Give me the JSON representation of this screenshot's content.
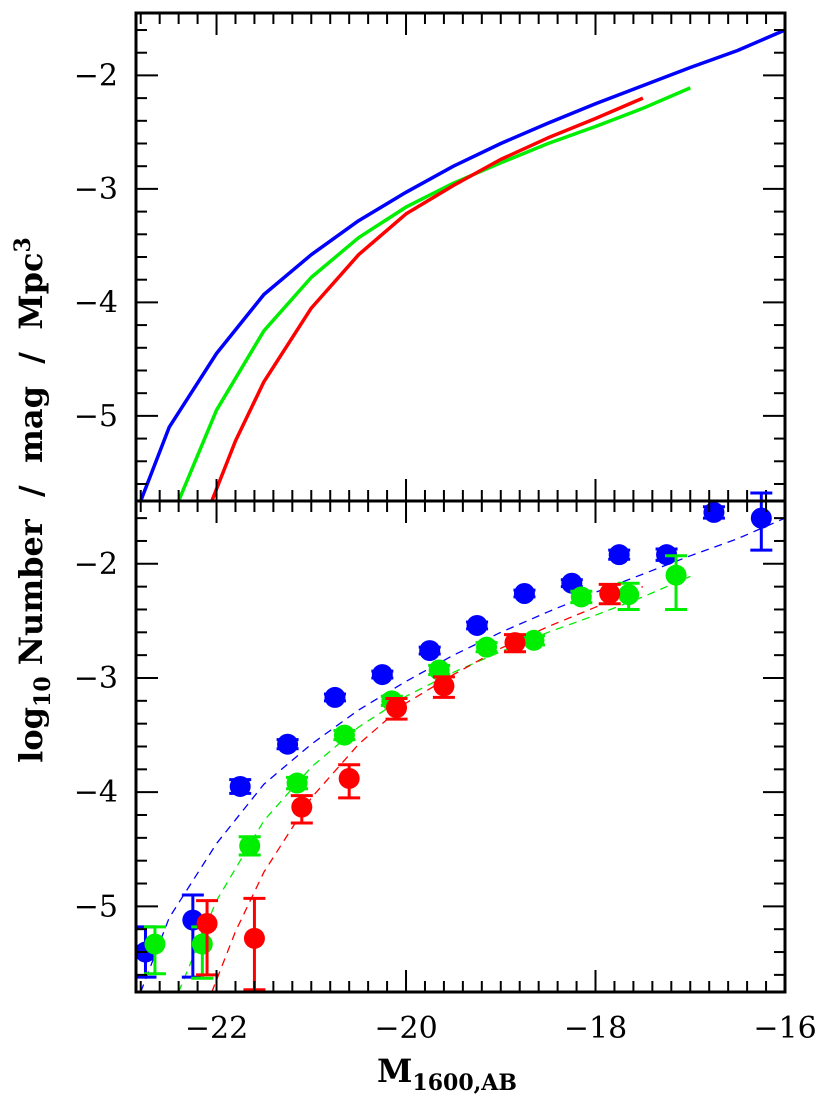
{
  "chart_data": [
    {
      "panel": "top",
      "type": "line",
      "xlim": [
        -22.85,
        -16.0
      ],
      "ylim": [
        -5.75,
        -1.45
      ],
      "xticks_major": [
        -22,
        -20,
        -18,
        -16
      ],
      "yticks": [
        -5,
        -4,
        -3,
        -2
      ],
      "ytick_labels": [
        "−5",
        "−4",
        "−3",
        "−2"
      ],
      "series": [
        {
          "color": "#0000ff",
          "x": [
            -22.8,
            -22.5,
            -22.0,
            -21.5,
            -21.0,
            -20.5,
            -20.0,
            -19.5,
            -19.0,
            -18.5,
            -18.0,
            -17.5,
            -17.0,
            -16.5,
            -16.0
          ],
          "y": [
            -5.75,
            -5.1,
            -4.45,
            -3.93,
            -3.58,
            -3.28,
            -3.03,
            -2.8,
            -2.6,
            -2.42,
            -2.25,
            -2.09,
            -1.93,
            -1.78,
            -1.6
          ]
        },
        {
          "color": "#00ee00",
          "x": [
            -22.4,
            -22.0,
            -21.5,
            -21.0,
            -20.5,
            -20.0,
            -19.5,
            -19.0,
            -18.5,
            -18.0,
            -17.5,
            -17.0
          ],
          "y": [
            -5.75,
            -4.95,
            -4.25,
            -3.78,
            -3.43,
            -3.16,
            -2.95,
            -2.77,
            -2.6,
            -2.45,
            -2.29,
            -2.11
          ]
        },
        {
          "color": "#ff0000",
          "x": [
            -22.05,
            -21.8,
            -21.5,
            -21.0,
            -20.5,
            -20.0,
            -19.5,
            -19.0,
            -18.5,
            -18.0,
            -17.5
          ],
          "y": [
            -5.75,
            -5.22,
            -4.7,
            -4.05,
            -3.58,
            -3.22,
            -2.97,
            -2.74,
            -2.55,
            -2.38,
            -2.2
          ]
        }
      ]
    },
    {
      "panel": "bottom",
      "type": "scatter",
      "xlim": [
        -22.85,
        -16.0
      ],
      "ylim": [
        -5.75,
        -1.45
      ],
      "xticks_major": [
        -22,
        -20,
        -18,
        -16
      ],
      "xtick_labels": [
        "−22",
        "−20",
        "−18",
        "−16"
      ],
      "yticks": [
        -5,
        -4,
        -3,
        -2
      ],
      "ytick_labels": [
        "−5",
        "−4",
        "−3",
        "−2"
      ],
      "xlabel": "M",
      "xlabel_sub": "1600,AB",
      "ylabel_pre": "log",
      "ylabel_sub": "10",
      "ylabel_post": " Number  /  mag  /  Mpc",
      "ylabel_sup": "3",
      "series": [
        {
          "color": "#0000ff",
          "fit": {
            "x": [
              -22.8,
              -22.5,
              -22.0,
              -21.5,
              -21.0,
              -20.5,
              -20.0,
              -19.5,
              -19.0,
              -18.5,
              -18.0,
              -17.5,
              -17.0,
              -16.5,
              -16.0
            ],
            "y": [
              -5.75,
              -5.1,
              -4.45,
              -3.93,
              -3.58,
              -3.28,
              -3.03,
              -2.8,
              -2.6,
              -2.42,
              -2.25,
              -2.09,
              -1.93,
              -1.78,
              -1.6
            ]
          },
          "points": [
            {
              "x": -22.75,
              "y": -5.4,
              "err_lo": 0.22,
              "err_hi": 0.22
            },
            {
              "x": -22.25,
              "y": -5.12,
              "err_lo": 0.5,
              "err_hi": 0.22
            },
            {
              "x": -21.75,
              "y": -3.95,
              "err_lo": 0.06,
              "err_hi": 0.06
            },
            {
              "x": -21.25,
              "y": -3.58,
              "err_lo": 0.04,
              "err_hi": 0.04
            },
            {
              "x": -20.75,
              "y": -3.17,
              "err_lo": 0.03,
              "err_hi": 0.03
            },
            {
              "x": -20.25,
              "y": -2.97,
              "err_lo": 0.03,
              "err_hi": 0.03
            },
            {
              "x": -19.75,
              "y": -2.76,
              "err_lo": 0.03,
              "err_hi": 0.03
            },
            {
              "x": -19.25,
              "y": -2.54,
              "err_lo": 0.03,
              "err_hi": 0.03
            },
            {
              "x": -18.75,
              "y": -2.26,
              "err_lo": 0.03,
              "err_hi": 0.03
            },
            {
              "x": -18.25,
              "y": -2.17,
              "err_lo": 0.03,
              "err_hi": 0.03
            },
            {
              "x": -17.75,
              "y": -1.92,
              "err_lo": 0.04,
              "err_hi": 0.04
            },
            {
              "x": -17.25,
              "y": -1.92,
              "err_lo": 0.05,
              "err_hi": 0.05
            },
            {
              "x": -16.75,
              "y": -1.55,
              "err_lo": 0.05,
              "err_hi": 0.05
            },
            {
              "x": -16.25,
              "y": -1.6,
              "err_lo": 0.28,
              "err_hi": 0.22
            }
          ]
        },
        {
          "color": "#00ee00",
          "fit": {
            "x": [
              -22.4,
              -22.0,
              -21.5,
              -21.0,
              -20.5,
              -20.0,
              -19.5,
              -19.0,
              -18.5,
              -18.0,
              -17.5,
              -17.0
            ],
            "y": [
              -5.75,
              -4.95,
              -4.25,
              -3.78,
              -3.43,
              -3.16,
              -2.95,
              -2.77,
              -2.6,
              -2.45,
              -2.29,
              -2.11
            ]
          },
          "points": [
            {
              "x": -22.65,
              "y": -5.33,
              "err_lo": 0.26,
              "err_hi": 0.15
            },
            {
              "x": -22.15,
              "y": -5.33,
              "err_lo": 0.3,
              "err_hi": 0.15
            },
            {
              "x": -21.65,
              "y": -4.47,
              "err_lo": 0.08,
              "err_hi": 0.08
            },
            {
              "x": -21.15,
              "y": -3.92,
              "err_lo": 0.05,
              "err_hi": 0.05
            },
            {
              "x": -20.65,
              "y": -3.5,
              "err_lo": 0.04,
              "err_hi": 0.04
            },
            {
              "x": -20.15,
              "y": -3.2,
              "err_lo": 0.04,
              "err_hi": 0.04
            },
            {
              "x": -19.65,
              "y": -2.93,
              "err_lo": 0.04,
              "err_hi": 0.04
            },
            {
              "x": -19.15,
              "y": -2.73,
              "err_lo": 0.04,
              "err_hi": 0.04
            },
            {
              "x": -18.65,
              "y": -2.67,
              "err_lo": 0.04,
              "err_hi": 0.04
            },
            {
              "x": -18.15,
              "y": -2.29,
              "err_lo": 0.05,
              "err_hi": 0.05
            },
            {
              "x": -17.65,
              "y": -2.27,
              "err_lo": 0.13,
              "err_hi": 0.1
            },
            {
              "x": -17.15,
              "y": -2.1,
              "err_lo": 0.3,
              "err_hi": 0.17
            }
          ]
        },
        {
          "color": "#ff0000",
          "fit": {
            "x": [
              -22.05,
              -21.8,
              -21.5,
              -21.0,
              -20.5,
              -20.0,
              -19.5,
              -19.0,
              -18.5,
              -18.0,
              -17.5
            ],
            "y": [
              -5.75,
              -5.22,
              -4.7,
              -4.05,
              -3.58,
              -3.22,
              -2.97,
              -2.74,
              -2.55,
              -2.38,
              -2.2
            ]
          },
          "points": [
            {
              "x": -22.1,
              "y": -5.15,
              "err_lo": 0.45,
              "err_hi": 0.2
            },
            {
              "x": -21.6,
              "y": -5.28,
              "err_lo": 0.45,
              "err_hi": 0.35
            },
            {
              "x": -21.1,
              "y": -4.13,
              "err_lo": 0.14,
              "err_hi": 0.1
            },
            {
              "x": -20.6,
              "y": -3.88,
              "err_lo": 0.17,
              "err_hi": 0.12
            },
            {
              "x": -20.1,
              "y": -3.26,
              "err_lo": 0.1,
              "err_hi": 0.08
            },
            {
              "x": -19.6,
              "y": -3.07,
              "err_lo": 0.1,
              "err_hi": 0.08
            },
            {
              "x": -18.85,
              "y": -2.69,
              "err_lo": 0.08,
              "err_hi": 0.07
            },
            {
              "x": -17.85,
              "y": -2.26,
              "err_lo": 0.09,
              "err_hi": 0.08
            }
          ]
        }
      ]
    }
  ]
}
